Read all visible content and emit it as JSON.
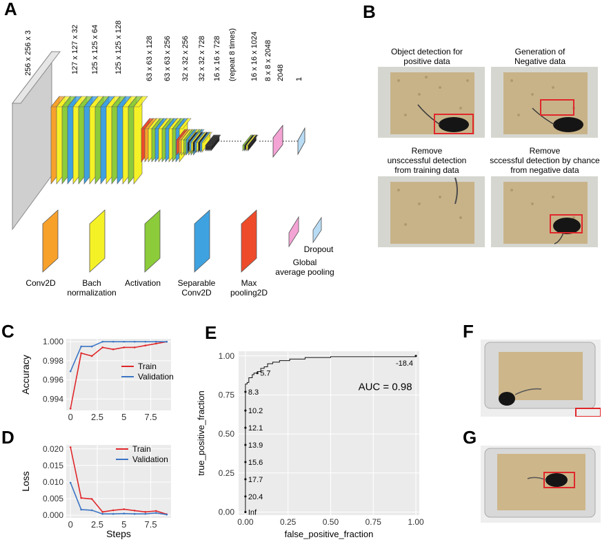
{
  "panels": {
    "A": "A",
    "B": "B",
    "C": "C",
    "D": "D",
    "E": "E",
    "F": "F",
    "G": "G"
  },
  "panelA": {
    "dims": [
      "256 x 256 x 3",
      "127 x 127 x 32",
      "125 x 125 x 64",
      "125 x 125 x 128",
      "63 x 63 x 128",
      "63 x 63 x 256",
      "32 x 32 x 256",
      "32 x 32 x 728",
      "16 x 16 x 728",
      "(repeat 8 times)",
      "16 x 16 x 1024",
      "8 x 8 x 2048",
      "2048",
      "1"
    ],
    "legend": [
      {
        "label": "Conv2D",
        "color": "#f7a12b"
      },
      {
        "label": "Bach\nnormalization",
        "color": "#f5f127"
      },
      {
        "label": "Activation",
        "color": "#8ccb3a"
      },
      {
        "label": "Separable\nConv2D",
        "color": "#3fa2e0"
      },
      {
        "label": "Max\npooling2D",
        "color": "#ee4b2b"
      },
      {
        "label": "Global\naverage pooling",
        "color": "#f4a3d5"
      },
      {
        "label": "Dropout",
        "color": "#b9dcf5"
      }
    ],
    "colors": {
      "input": "#cfcfcf"
    }
  },
  "panelB": {
    "titles": [
      "Object detection for\npositive data",
      "Generation of\nNegative data",
      "Remove\nunsccessful detection\nfrom training data",
      "Remove\nsccessful detection by chance\nfrom negative data"
    ]
  },
  "panelC": {
    "ylabel": "Accuracy",
    "legend": [
      "Train",
      "Validation"
    ],
    "chart_data": {
      "type": "line",
      "x": [
        0,
        1,
        2,
        3,
        4,
        5,
        6,
        7,
        8,
        9
      ],
      "series": [
        {
          "name": "Train",
          "color": "#e0262a",
          "values": [
            0.993,
            0.9988,
            0.9985,
            0.9994,
            0.9992,
            0.9994,
            0.9994,
            0.9996,
            0.9998,
            1.0
          ]
        },
        {
          "name": "Validation",
          "color": "#3b75c4",
          "values": [
            0.9969,
            0.9995,
            0.9995,
            1.0,
            1.0,
            1.0,
            1.0,
            1.0,
            1.0,
            1.0
          ]
        }
      ],
      "xlim": [
        -0.4,
        9.4
      ],
      "ylim": [
        0.9928,
        1.0003
      ],
      "xticks": [
        "0",
        "2.5",
        "5",
        "7.5"
      ],
      "yticks": [
        "0.994",
        "0.996",
        "0.998",
        "1.000"
      ]
    }
  },
  "panelD": {
    "ylabel": "Loss",
    "xlabel": "Steps",
    "legend": [
      "Train",
      "Validation"
    ],
    "chart_data": {
      "type": "line",
      "x": [
        0,
        1,
        2,
        3,
        4,
        5,
        6,
        7,
        8,
        9
      ],
      "series": [
        {
          "name": "Train",
          "color": "#e0262a",
          "values": [
            0.0205,
            0.0052,
            0.0049,
            0.001,
            0.0015,
            0.0018,
            0.0014,
            0.001,
            0.0013,
            0.0003
          ]
        },
        {
          "name": "Validation",
          "color": "#3b75c4",
          "values": [
            0.0098,
            0.0017,
            0.0015,
            0.0004,
            0.0004,
            0.0005,
            0.0004,
            0.0004,
            0.0007,
            0.0002
          ]
        }
      ],
      "xlim": [
        -0.4,
        9.4
      ],
      "ylim": [
        -0.0008,
        0.0212
      ],
      "xticks": [
        "0",
        "2.5",
        "5",
        "7.5"
      ],
      "yticks": [
        "0.000",
        "0.005",
        "0.010",
        "0.015",
        "0.020"
      ]
    }
  },
  "panelE": {
    "xlabel": "false_positive_fraction",
    "ylabel": "true_positive_fraction",
    "auc": "AUC = 0.98",
    "chart_data": {
      "type": "line",
      "xticks": [
        "0.00",
        "0.25",
        "0.50",
        "0.75",
        "1.00"
      ],
      "yticks": [
        "0.00",
        "0.25",
        "0.50",
        "0.75",
        "1.00"
      ],
      "points": [
        [
          0,
          0
        ],
        [
          0,
          0.82
        ],
        [
          0.01,
          0.83
        ],
        [
          0.02,
          0.86
        ],
        [
          0.04,
          0.88
        ],
        [
          0.05,
          0.89
        ],
        [
          0.07,
          0.9
        ],
        [
          0.09,
          0.92
        ],
        [
          0.11,
          0.93
        ],
        [
          0.13,
          0.95
        ],
        [
          0.16,
          0.96
        ],
        [
          0.2,
          0.97
        ],
        [
          0.26,
          0.98
        ],
        [
          0.35,
          0.99
        ],
        [
          0.5,
          0.995
        ],
        [
          1.0,
          1.0
        ]
      ],
      "thresholds": [
        {
          "label": "Inf",
          "x": 0,
          "y": 0.0
        },
        {
          "label": "20.4",
          "x": 0,
          "y": 0.1
        },
        {
          "label": "17.7",
          "x": 0,
          "y": 0.21
        },
        {
          "label": "15.6",
          "x": 0,
          "y": 0.32
        },
        {
          "label": "13.9",
          "x": 0,
          "y": 0.43
        },
        {
          "label": "12.1",
          "x": 0,
          "y": 0.54
        },
        {
          "label": "10.2",
          "x": 0,
          "y": 0.65
        },
        {
          "label": "8.3",
          "x": 0,
          "y": 0.77
        },
        {
          "label": "5.7",
          "x": 0.07,
          "y": 0.89
        },
        {
          "label": "-18.4",
          "x": 1.0,
          "y": 1.0
        }
      ],
      "xlim": [
        -0.04,
        1.02
      ],
      "ylim": [
        -0.02,
        1.03
      ]
    }
  }
}
